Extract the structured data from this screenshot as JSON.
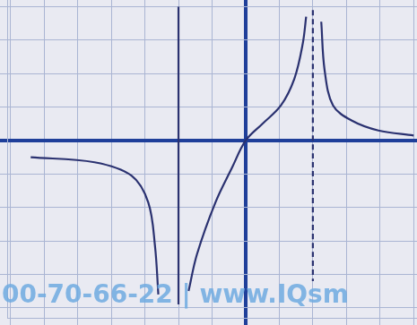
{
  "chart_data": {
    "type": "line",
    "xlim": [
      -7.1,
      5.1
    ],
    "ylim": [
      -5.3,
      4.2
    ],
    "xticks": [
      -7,
      -6,
      -5,
      -4,
      -3,
      -2,
      -1,
      0,
      1,
      2,
      3,
      4,
      5
    ],
    "yticks": [
      -5,
      -4,
      -3,
      -2,
      -1,
      0,
      1,
      2,
      3,
      4
    ],
    "grid": true,
    "tick_labels": false,
    "annotations": [
      "00-70-66-22 | www.IQsm"
    ],
    "series": [
      {
        "type": "line",
        "color": "#2a3170",
        "line_style": "solid",
        "x": [
          -6.4,
          -4.5,
          -3.4,
          -2.9,
          -2.7,
          -2.6
        ],
        "values": [
          -0.5,
          -0.65,
          -1.05,
          -1.85,
          -3.15,
          -4.6
        ]
      },
      {
        "type": "line",
        "color": "#2a3170",
        "line_style": "solid",
        "x": [
          -1.7,
          -1.45,
          -0.9,
          -0.4,
          0,
          0.5,
          1.05,
          1.45,
          1.7,
          1.8
        ],
        "values": [
          -4.5,
          -3.4,
          -1.85,
          -0.8,
          0,
          0.5,
          1.05,
          1.85,
          2.9,
          3.7
        ]
      },
      {
        "type": "line",
        "color": "#2a3170",
        "line_style": "solid",
        "x": [
          2.25,
          2.35,
          2.6,
          3.15,
          3.95,
          5.0
        ],
        "values": [
          3.55,
          2.1,
          1.05,
          0.6,
          0.3,
          0.15
        ]
      },
      {
        "type": "line",
        "color": "#2a3170",
        "line_style": "solid",
        "x": [
          -2,
          -2
        ],
        "values": [
          4.0,
          -4.9
        ]
      },
      {
        "type": "line",
        "color": "#2a3170",
        "line_style": "dashed",
        "x": [
          2,
          2
        ],
        "values": [
          3.9,
          -4.2
        ]
      }
    ]
  }
}
